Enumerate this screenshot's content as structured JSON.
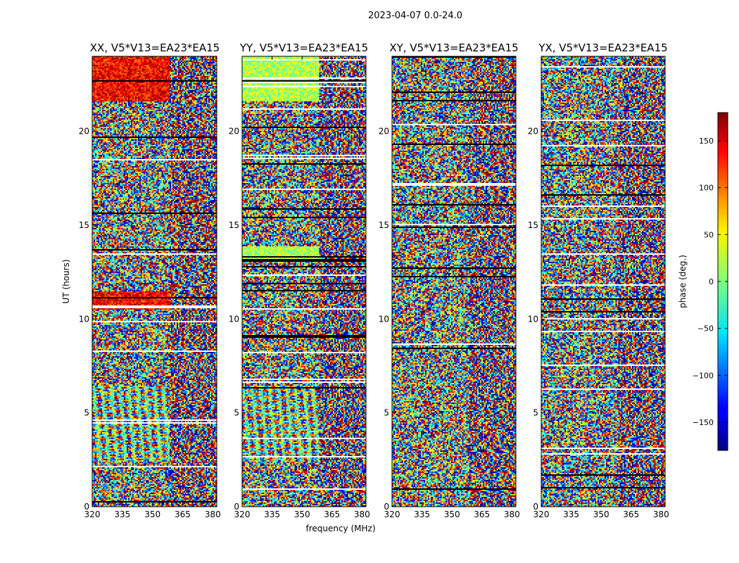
{
  "figure": {
    "suptitle": "2023-04-07 0.0-24.0"
  },
  "chart_data": {
    "type": "heatmap",
    "colormap": "jet",
    "xlabel": "frequency (MHz)",
    "ylabel": "UT (hours)",
    "xlim": [
      320,
      382
    ],
    "ylim": [
      0,
      24
    ],
    "xticks": [
      320,
      335,
      350,
      365,
      380
    ],
    "yticks": [
      0,
      5,
      10,
      15,
      20
    ],
    "panels": [
      {
        "title": "XX, V5*V13=EA23*EA15",
        "polarization": "XX"
      },
      {
        "title": "YY, V5*V13=EA23*EA15",
        "polarization": "YY"
      },
      {
        "title": "XY, V5*V13=EA23*EA15",
        "polarization": "XY"
      },
      {
        "title": "YX, V5*V13=EA23*EA15",
        "polarization": "YX"
      }
    ],
    "colorbar": {
      "label": "phase (deg.)",
      "range": [
        -180,
        180
      ],
      "ticks": [
        -150,
        -100,
        -50,
        0,
        50,
        100,
        150
      ]
    }
  }
}
